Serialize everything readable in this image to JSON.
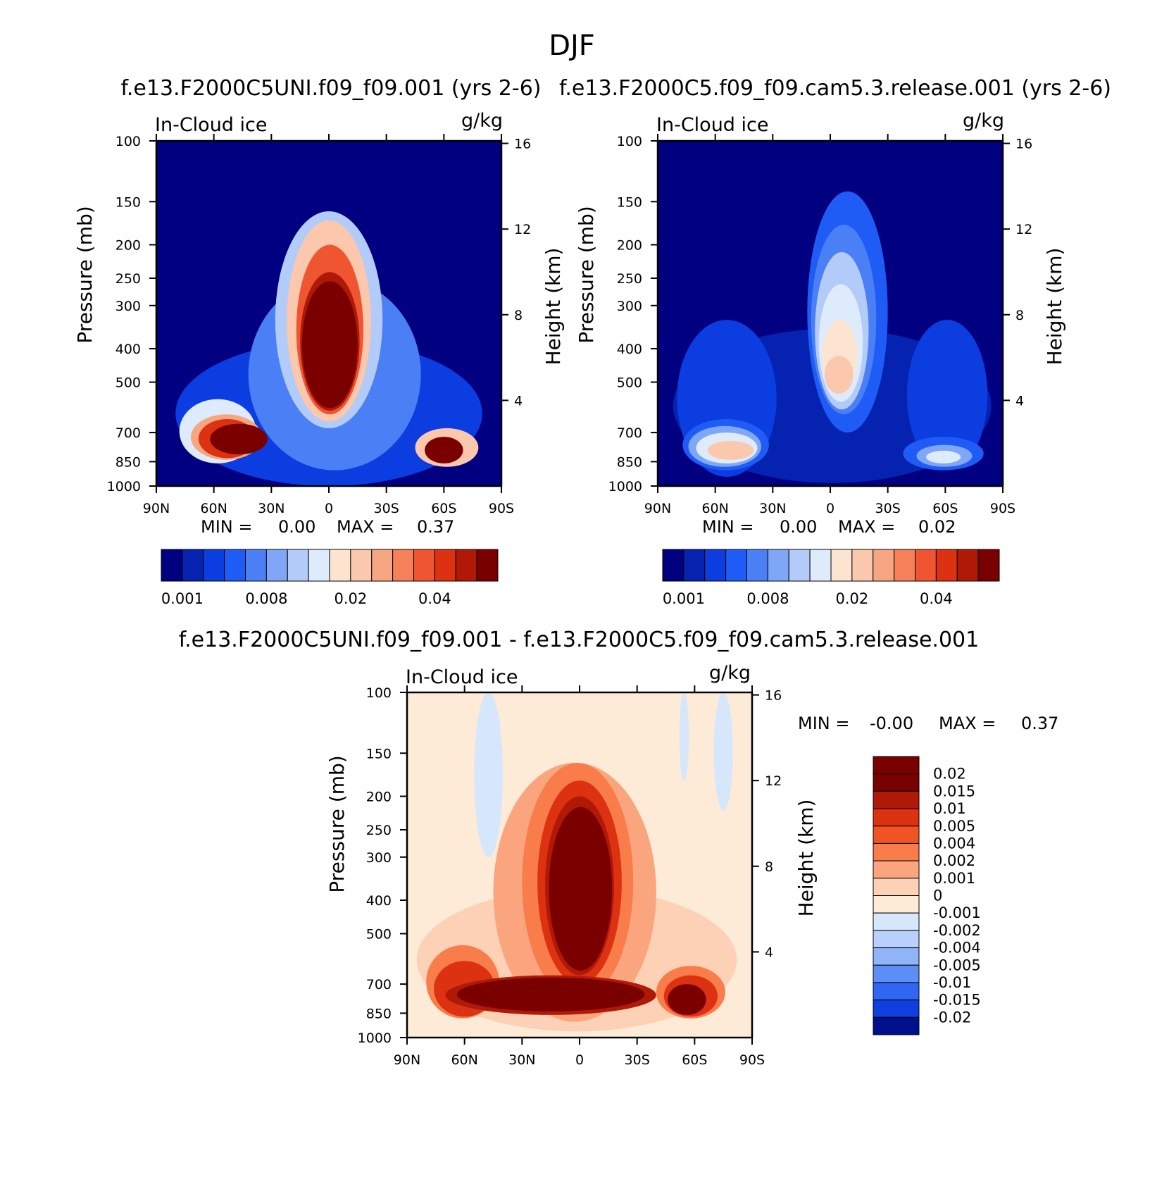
{
  "figure_title": "DJF",
  "chart_data": [
    {
      "type": "heatmap",
      "panel": "model",
      "case_title": "f.e13.F2000C5UNI.f09_f09.001 (yrs 2-6)",
      "variable": "In-Cloud ice",
      "units": "g/kg",
      "ylabel": "Pressure (mb)",
      "ylabel_right": "Height (km)",
      "xlabel": "",
      "x_ticks": [
        "90N",
        "60N",
        "30N",
        "0",
        "30S",
        "60S",
        "90S"
      ],
      "y_ticks": [
        100,
        150,
        200,
        250,
        300,
        400,
        500,
        700,
        850,
        1000
      ],
      "y_right_ticks": [
        4,
        8,
        12,
        16
      ],
      "xlim": [
        90,
        -90
      ],
      "ylim": [
        1000,
        100
      ],
      "min_label": "MIN =",
      "min_value": "0.00",
      "max_label": "MAX =",
      "max_value": "0.37",
      "colorbar_levels": [
        0.001,
        0.002,
        0.004,
        0.006,
        0.008,
        0.01,
        0.012,
        0.015,
        0.02,
        0.025,
        0.03,
        0.035,
        0.04,
        0.05,
        0.06
      ],
      "colorbar_labels": [
        "0.001",
        "0.008",
        "0.02",
        "0.04"
      ],
      "max_index": 15,
      "regions": [
        {
          "lat": [
            80,
            -80
          ],
          "p": [
            1000,
            380
          ],
          "idx": 2,
          "skip": "left"
        },
        {
          "lat": [
            42,
            -48
          ],
          "p": [
            900,
            250
          ],
          "idx": 4
        },
        {
          "lat": [
            28,
            -28
          ],
          "p": [
            680,
            160
          ],
          "idx": 6
        },
        {
          "lat": [
            78,
            38
          ],
          "p": [
            860,
            560
          ],
          "idx": 7
        },
        {
          "lat": [
            22,
            -22
          ],
          "p": [
            650,
            170
          ],
          "idx": 9
        },
        {
          "lat": [
            72,
            35
          ],
          "p": [
            840,
            620
          ],
          "idx": 10
        },
        {
          "lat": [
            17,
            -18
          ],
          "p": [
            620,
            200
          ],
          "idx": 12
        },
        {
          "lat": [
            68,
            38
          ],
          "p": [
            830,
            640
          ],
          "idx": 13
        },
        {
          "lat": [
            15,
            -16
          ],
          "p": [
            605,
            240
          ],
          "idx": 14
        },
        {
          "lat": [
            62,
            32
          ],
          "p": [
            810,
            660
          ],
          "idx": 15
        },
        {
          "lat": [
            14,
            -15
          ],
          "p": [
            595,
            255
          ],
          "idx": 15
        },
        {
          "lat": [
            -45,
            -78
          ],
          "p": [
            880,
            680
          ],
          "idx": 9
        },
        {
          "lat": [
            -50,
            -70
          ],
          "p": [
            860,
            720
          ],
          "idx": 15
        }
      ]
    },
    {
      "type": "heatmap",
      "panel": "control",
      "case_title": "f.e13.F2000C5.f09_f09.cam5.3.release.001 (yrs 2-6)",
      "variable": "In-Cloud ice",
      "units": "g/kg",
      "ylabel": "Pressure (mb)",
      "ylabel_right": "Height (km)",
      "xlabel": "",
      "x_ticks": [
        "90N",
        "60N",
        "30N",
        "0",
        "30S",
        "60S",
        "90S"
      ],
      "y_ticks": [
        100,
        150,
        200,
        250,
        300,
        400,
        500,
        700,
        850,
        1000
      ],
      "y_right_ticks": [
        4,
        8,
        12,
        16
      ],
      "xlim": [
        90,
        -90
      ],
      "ylim": [
        1000,
        100
      ],
      "min_label": "MIN =",
      "min_value": "0.00",
      "max_label": "MAX =",
      "max_value": "0.02",
      "colorbar_levels": [
        0.001,
        0.002,
        0.004,
        0.006,
        0.008,
        0.01,
        0.012,
        0.015,
        0.02,
        0.025,
        0.03,
        0.035,
        0.04,
        0.05,
        0.06
      ],
      "colorbar_labels": [
        "0.001",
        "0.008",
        "0.02",
        "0.04"
      ],
      "max_index": 15,
      "regions": [
        {
          "lat": [
            82,
            -84
          ],
          "p": [
            980,
            350
          ],
          "idx": 1
        },
        {
          "lat": [
            80,
            28
          ],
          "p": [
            940,
            330
          ],
          "idx": 2
        },
        {
          "lat": [
            -40,
            -82
          ],
          "p": [
            900,
            330
          ],
          "idx": 2
        },
        {
          "lat": [
            12,
            -30
          ],
          "p": [
            700,
            140
          ],
          "idx": 3
        },
        {
          "lat": [
            77,
            32
          ],
          "p": [
            900,
            640
          ],
          "idx": 3
        },
        {
          "lat": [
            -38,
            -80
          ],
          "p": [
            900,
            720
          ],
          "idx": 3
        },
        {
          "lat": [
            10,
            -24
          ],
          "p": [
            620,
            175
          ],
          "idx": 4
        },
        {
          "lat": [
            74,
            36
          ],
          "p": [
            880,
            670
          ],
          "idx": 5
        },
        {
          "lat": [
            -45,
            -74
          ],
          "p": [
            880,
            760
          ],
          "idx": 5
        },
        {
          "lat": [
            8,
            -20
          ],
          "p": [
            600,
            210
          ],
          "idx": 6
        },
        {
          "lat": [
            70,
            38
          ],
          "p": [
            860,
            700
          ],
          "idx": 7
        },
        {
          "lat": [
            -50,
            -68
          ],
          "p": [
            860,
            790
          ],
          "idx": 7
        },
        {
          "lat": [
            6,
            -17
          ],
          "p": [
            570,
            260
          ],
          "idx": 7
        },
        {
          "lat": [
            4,
            -14
          ],
          "p": [
            530,
            330
          ],
          "idx": 8
        },
        {
          "lat": [
            64,
            40
          ],
          "p": [
            840,
            740
          ],
          "idx": 9
        },
        {
          "lat": [
            3,
            -12
          ],
          "p": [
            540,
            420
          ],
          "idx": 9
        }
      ]
    },
    {
      "type": "heatmap",
      "panel": "difference",
      "case_title": "f.e13.F2000C5UNI.f09_f09.001 - f.e13.F2000C5.f09_f09.cam5.3.release.001",
      "variable": "In-Cloud ice",
      "units": "g/kg",
      "ylabel": "Pressure (mb)",
      "ylabel_right": "Height (km)",
      "xlabel": "",
      "x_ticks": [
        "90N",
        "60N",
        "30N",
        "0",
        "30S",
        "60S",
        "90S"
      ],
      "y_ticks": [
        100,
        150,
        200,
        250,
        300,
        400,
        500,
        700,
        850,
        1000
      ],
      "y_right_ticks": [
        4,
        8,
        12,
        16
      ],
      "xlim": [
        90,
        -90
      ],
      "ylim": [
        1000,
        100
      ],
      "min_label": "MIN =",
      "min_value": "-0.00",
      "max_label": "MAX =",
      "max_value": "0.37",
      "colorbar_levels": [
        0.02,
        0.015,
        0.01,
        0.005,
        0.004,
        0.002,
        0.001,
        0,
        -0.001,
        -0.002,
        -0.004,
        -0.005,
        -0.01,
        -0.015,
        -0.02
      ],
      "colorbar_labels": [
        "0.02",
        "0.015",
        "0.01",
        "0.005",
        "0.004",
        "0.002",
        "0.001",
        "0",
        "-0.001",
        "-0.002",
        "-0.004",
        "-0.005",
        "-0.01",
        "-0.015",
        "-0.02"
      ],
      "background_index": 7,
      "regions": [
        {
          "lat": [
            55,
            40
          ],
          "p": [
            300,
            100
          ],
          "idx": 8
        },
        {
          "lat": [
            -52,
            -57
          ],
          "p": [
            180,
            100
          ],
          "idx": 8
        },
        {
          "lat": [
            -70,
            -80
          ],
          "p": [
            220,
            100
          ],
          "idx": 8
        },
        {
          "lat": [
            10,
            -12
          ],
          "p": [
            720,
            680
          ],
          "idx": 8
        },
        {
          "lat": [
            85,
            -82
          ],
          "p": [
            960,
            370
          ],
          "idx": 6
        },
        {
          "lat": [
            45,
            -40
          ],
          "p": [
            900,
            160
          ],
          "idx": 5
        },
        {
          "lat": [
            30,
            -28
          ],
          "p": [
            780,
            160
          ],
          "idx": 4
        },
        {
          "lat": [
            80,
            42
          ],
          "p": [
            880,
            540
          ],
          "idx": 4
        },
        {
          "lat": [
            -40,
            -76
          ],
          "p": [
            880,
            620
          ],
          "idx": 4
        },
        {
          "lat": [
            22,
            -22
          ],
          "p": [
            700,
            180
          ],
          "idx": 2
        },
        {
          "lat": [
            76,
            44
          ],
          "p": [
            870,
            600
          ],
          "idx": 2
        },
        {
          "lat": [
            -44,
            -72
          ],
          "p": [
            870,
            660
          ],
          "idx": 2
        },
        {
          "lat": [
            18,
            -18
          ],
          "p": [
            660,
            200
          ],
          "idx": 1
        },
        {
          "lat": [
            70,
            -40
          ],
          "p": [
            860,
            660
          ],
          "idx": 1
        },
        {
          "lat": [
            16,
            -17
          ],
          "p": [
            640,
            215
          ],
          "idx": 0
        },
        {
          "lat": [
            64,
            -34
          ],
          "p": [
            840,
            670
          ],
          "idx": 0
        },
        {
          "lat": [
            -46,
            -66
          ],
          "p": [
            860,
            700
          ],
          "idx": 0
        }
      ]
    }
  ],
  "colors": {
    "model_scale": [
      "#000080",
      "#0522b0",
      "#0b3de0",
      "#1f5cf5",
      "#4b7ff5",
      "#7fa6f7",
      "#b3cbf9",
      "#deebfc",
      "#fde4d1",
      "#fbc8ad",
      "#f7a682",
      "#f5805a",
      "#ef5530",
      "#dd3211",
      "#b11907",
      "#7a0000"
    ],
    "diff_scale": [
      "#7a0000",
      "#b11907",
      "#dd3211",
      "#f25325",
      "#f97c4b",
      "#fba57f",
      "#fcd1b5",
      "#fdebd7",
      "#d7e7fb",
      "#b8d0fb",
      "#90b4f8",
      "#5c8ff5",
      "#2f66f3",
      "#103fe0",
      "#000f8c"
    ],
    "background": "#ffffff",
    "axis": "#000000"
  }
}
